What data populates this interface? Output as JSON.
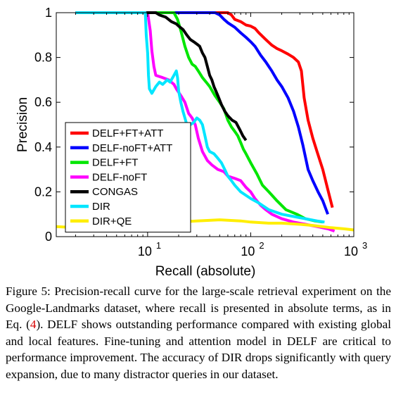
{
  "chart_data": {
    "type": "line",
    "xlabel": "Recall (absolute)",
    "ylabel": "Precision",
    "xscale": "log",
    "xlim": [
      1.3,
      1000
    ],
    "ylim": [
      0,
      1
    ],
    "x_ticks": [
      {
        "value": 10,
        "base": "10",
        "exp": "1"
      },
      {
        "value": 100,
        "base": "10",
        "exp": "2"
      },
      {
        "value": 1000,
        "base": "10",
        "exp": "3"
      }
    ],
    "y_ticks": [
      "0",
      "0.2",
      "0.4",
      "0.6",
      "0.8",
      "1"
    ],
    "y_tick_values": [
      0,
      0.2,
      0.4,
      0.6,
      0.8,
      1
    ],
    "grid": false,
    "legend_position": "lower-left",
    "series": [
      {
        "name": "DELF+FT+ATT",
        "color": "#ff0000",
        "points": [
          [
            2,
            1
          ],
          [
            60,
            1
          ],
          [
            65,
            0.99
          ],
          [
            70,
            0.97
          ],
          [
            80,
            0.96
          ],
          [
            90,
            0.945
          ],
          [
            100,
            0.94
          ],
          [
            110,
            0.93
          ],
          [
            120,
            0.91
          ],
          [
            140,
            0.88
          ],
          [
            160,
            0.855
          ],
          [
            180,
            0.84
          ],
          [
            200,
            0.83
          ],
          [
            230,
            0.815
          ],
          [
            260,
            0.8
          ],
          [
            290,
            0.78
          ],
          [
            310,
            0.74
          ],
          [
            330,
            0.62
          ],
          [
            360,
            0.52
          ],
          [
            400,
            0.44
          ],
          [
            440,
            0.38
          ],
          [
            500,
            0.3
          ],
          [
            560,
            0.21
          ],
          [
            620,
            0.13
          ]
        ]
      },
      {
        "name": "DELF-noFT+ATT",
        "color": "#0000ff",
        "points": [
          [
            2,
            1
          ],
          [
            45,
            1
          ],
          [
            50,
            0.99
          ],
          [
            55,
            0.97
          ],
          [
            60,
            0.955
          ],
          [
            70,
            0.935
          ],
          [
            80,
            0.91
          ],
          [
            90,
            0.89
          ],
          [
            100,
            0.87
          ],
          [
            110,
            0.85
          ],
          [
            125,
            0.81
          ],
          [
            140,
            0.78
          ],
          [
            160,
            0.74
          ],
          [
            180,
            0.7
          ],
          [
            200,
            0.67
          ],
          [
            230,
            0.62
          ],
          [
            260,
            0.56
          ],
          [
            290,
            0.49
          ],
          [
            320,
            0.41
          ],
          [
            360,
            0.3
          ],
          [
            400,
            0.25
          ],
          [
            450,
            0.2
          ],
          [
            500,
            0.16
          ],
          [
            560,
            0.1
          ]
        ]
      },
      {
        "name": "DELF+FT",
        "color": "#00e600",
        "points": [
          [
            2,
            1
          ],
          [
            18,
            1
          ],
          [
            19.5,
            0.97
          ],
          [
            21,
            0.92
          ],
          [
            23,
            0.85
          ],
          [
            25,
            0.8
          ],
          [
            27,
            0.77
          ],
          [
            29,
            0.76
          ],
          [
            31,
            0.74
          ],
          [
            34,
            0.71
          ],
          [
            37,
            0.69
          ],
          [
            40,
            0.67
          ],
          [
            45,
            0.63
          ],
          [
            50,
            0.6
          ],
          [
            55,
            0.57
          ],
          [
            60,
            0.52
          ],
          [
            65,
            0.49
          ],
          [
            70,
            0.47
          ],
          [
            75,
            0.45
          ],
          [
            80,
            0.42
          ],
          [
            85,
            0.39
          ],
          [
            90,
            0.37
          ],
          [
            100,
            0.33
          ],
          [
            115,
            0.28
          ],
          [
            130,
            0.23
          ],
          [
            150,
            0.2
          ],
          [
            180,
            0.16
          ],
          [
            220,
            0.12
          ],
          [
            280,
            0.1
          ],
          [
            340,
            0.08
          ],
          [
            420,
            0.07
          ],
          [
            500,
            0.065
          ]
        ]
      },
      {
        "name": "DELF-noFT",
        "color": "#ff00ff",
        "points": [
          [
            2,
            1
          ],
          [
            10,
            1
          ],
          [
            10.6,
            0.92
          ],
          [
            11,
            0.83
          ],
          [
            11.5,
            0.76
          ],
          [
            12,
            0.72
          ],
          [
            14,
            0.71
          ],
          [
            16,
            0.7
          ],
          [
            18,
            0.68
          ],
          [
            19,
            0.66
          ],
          [
            21,
            0.63
          ],
          [
            23,
            0.6
          ],
          [
            25,
            0.55
          ],
          [
            27,
            0.53
          ],
          [
            29,
            0.5
          ],
          [
            31,
            0.44
          ],
          [
            34,
            0.38
          ],
          [
            38,
            0.34
          ],
          [
            42,
            0.32
          ],
          [
            48,
            0.3
          ],
          [
            55,
            0.29
          ],
          [
            60,
            0.27
          ],
          [
            70,
            0.26
          ],
          [
            80,
            0.25
          ],
          [
            90,
            0.22
          ],
          [
            100,
            0.2
          ],
          [
            110,
            0.17
          ],
          [
            125,
            0.14
          ],
          [
            140,
            0.12
          ],
          [
            160,
            0.1
          ],
          [
            200,
            0.08
          ],
          [
            260,
            0.065
          ],
          [
            340,
            0.055
          ],
          [
            440,
            0.045
          ],
          [
            560,
            0.035
          ],
          [
            650,
            0.025
          ]
        ]
      },
      {
        "name": "CONGAS",
        "color": "#000000",
        "points": [
          [
            2,
            1
          ],
          [
            12,
            1
          ],
          [
            13,
            0.99
          ],
          [
            15,
            0.98
          ],
          [
            17,
            0.96
          ],
          [
            19,
            0.95
          ],
          [
            20,
            0.94
          ],
          [
            22,
            0.925
          ],
          [
            24,
            0.9
          ],
          [
            26,
            0.88
          ],
          [
            28,
            0.87
          ],
          [
            30,
            0.86
          ],
          [
            32,
            0.85
          ],
          [
            34,
            0.82
          ],
          [
            36,
            0.8
          ],
          [
            38,
            0.76
          ],
          [
            40,
            0.72
          ],
          [
            42,
            0.7
          ],
          [
            44,
            0.67
          ],
          [
            46,
            0.65
          ],
          [
            48,
            0.63
          ],
          [
            52,
            0.59
          ],
          [
            56,
            0.56
          ],
          [
            60,
            0.54
          ],
          [
            66,
            0.52
          ],
          [
            72,
            0.51
          ],
          [
            78,
            0.48
          ],
          [
            84,
            0.45
          ],
          [
            90,
            0.43
          ]
        ]
      },
      {
        "name": "DIR",
        "color": "#00e6ff",
        "points": [
          [
            2,
            1
          ],
          [
            9.5,
            1
          ],
          [
            9.7,
            0.9
          ],
          [
            10,
            0.82
          ],
          [
            10.2,
            0.72
          ],
          [
            10.4,
            0.66
          ],
          [
            11,
            0.64
          ],
          [
            12,
            0.67
          ],
          [
            13,
            0.69
          ],
          [
            14,
            0.68
          ],
          [
            15.5,
            0.7
          ],
          [
            16.5,
            0.69
          ],
          [
            17.5,
            0.71
          ],
          [
            18.5,
            0.73
          ],
          [
            19,
            0.74
          ],
          [
            19.5,
            0.71
          ],
          [
            20,
            0.65
          ],
          [
            21,
            0.6
          ],
          [
            22,
            0.56
          ],
          [
            23,
            0.53
          ],
          [
            24,
            0.5
          ],
          [
            26,
            0.5
          ],
          [
            28,
            0.51
          ],
          [
            30,
            0.53
          ],
          [
            32,
            0.52
          ],
          [
            34,
            0.5
          ],
          [
            36,
            0.45
          ],
          [
            38,
            0.4
          ],
          [
            40,
            0.38
          ],
          [
            44,
            0.37
          ],
          [
            48,
            0.35
          ],
          [
            52,
            0.33
          ],
          [
            56,
            0.3
          ],
          [
            60,
            0.27
          ],
          [
            65,
            0.25
          ],
          [
            70,
            0.23
          ],
          [
            80,
            0.2
          ],
          [
            100,
            0.17
          ],
          [
            120,
            0.15
          ],
          [
            150,
            0.12
          ],
          [
            200,
            0.1
          ],
          [
            260,
            0.09
          ],
          [
            340,
            0.08
          ],
          [
            440,
            0.07
          ],
          [
            520,
            0.065
          ]
        ]
      },
      {
        "name": "DIR+QE",
        "color": "#ffee00",
        "points": [
          [
            1.3,
            0.045
          ],
          [
            2,
            0.04
          ],
          [
            3,
            0.045
          ],
          [
            5,
            0.055
          ],
          [
            8,
            0.06
          ],
          [
            12,
            0.065
          ],
          [
            20,
            0.065
          ],
          [
            30,
            0.07
          ],
          [
            50,
            0.075
          ],
          [
            80,
            0.07
          ],
          [
            100,
            0.065
          ],
          [
            150,
            0.06
          ],
          [
            200,
            0.06
          ],
          [
            300,
            0.055
          ],
          [
            400,
            0.05
          ],
          [
            600,
            0.04
          ],
          [
            800,
            0.035
          ],
          [
            1000,
            0.03
          ]
        ]
      }
    ]
  },
  "caption": {
    "prefix": "Figure 5: Precision-recall curve for the large-scale retrieval experiment on the Google-Landmarks dataset, where recall is presented in absolute terms, as in Eq. (",
    "eq_ref": "4",
    "suffix": "). DELF shows outstanding performance compared with existing global and local features. Fine-tuning and attention model in DELF are critical to performance improvement. The accuracy of DIR drops significantly with query expansion, due to many distractor queries in our dataset."
  }
}
